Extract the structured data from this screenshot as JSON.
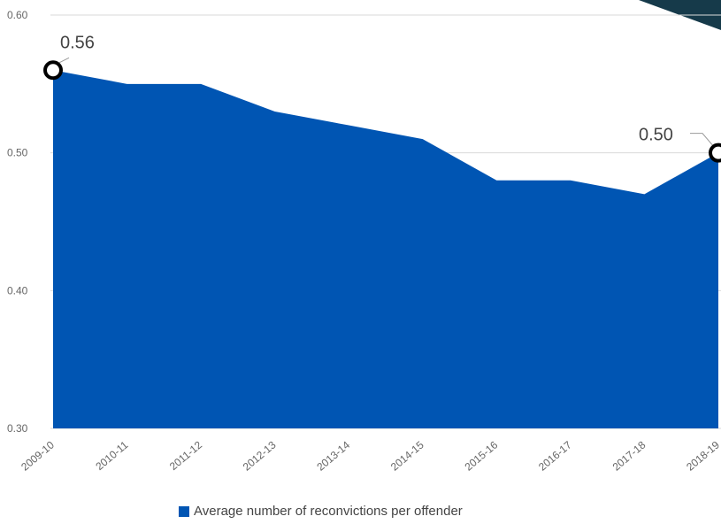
{
  "chart_data": {
    "type": "area",
    "categories": [
      "2009-10",
      "2010-11",
      "2011-12",
      "2012-13",
      "2013-14",
      "2014-15",
      "2015-16",
      "2016-17",
      "2017-18",
      "2018-19"
    ],
    "series": [
      {
        "name": "Average number of reconvictions per offender",
        "values": [
          0.56,
          0.55,
          0.55,
          0.53,
          0.52,
          0.51,
          0.48,
          0.48,
          0.47,
          0.5
        ]
      }
    ],
    "yticks": [
      "0.60",
      "0.50",
      "0.40",
      "0.30"
    ],
    "ytick_values": [
      0.6,
      0.5,
      0.4,
      0.3
    ],
    "ylim": [
      0.3,
      0.6
    ],
    "grid": true,
    "legend": "bottom-center",
    "annotations": [
      {
        "index": 0,
        "text": "0.56"
      },
      {
        "index": 9,
        "text": "0.50"
      }
    ],
    "colors": {
      "fill": "#0055b3",
      "grid": "#d9d9d9",
      "marker_stroke": "#000000",
      "marker_fill": "#ffffff",
      "corner": "#163a4a"
    }
  }
}
